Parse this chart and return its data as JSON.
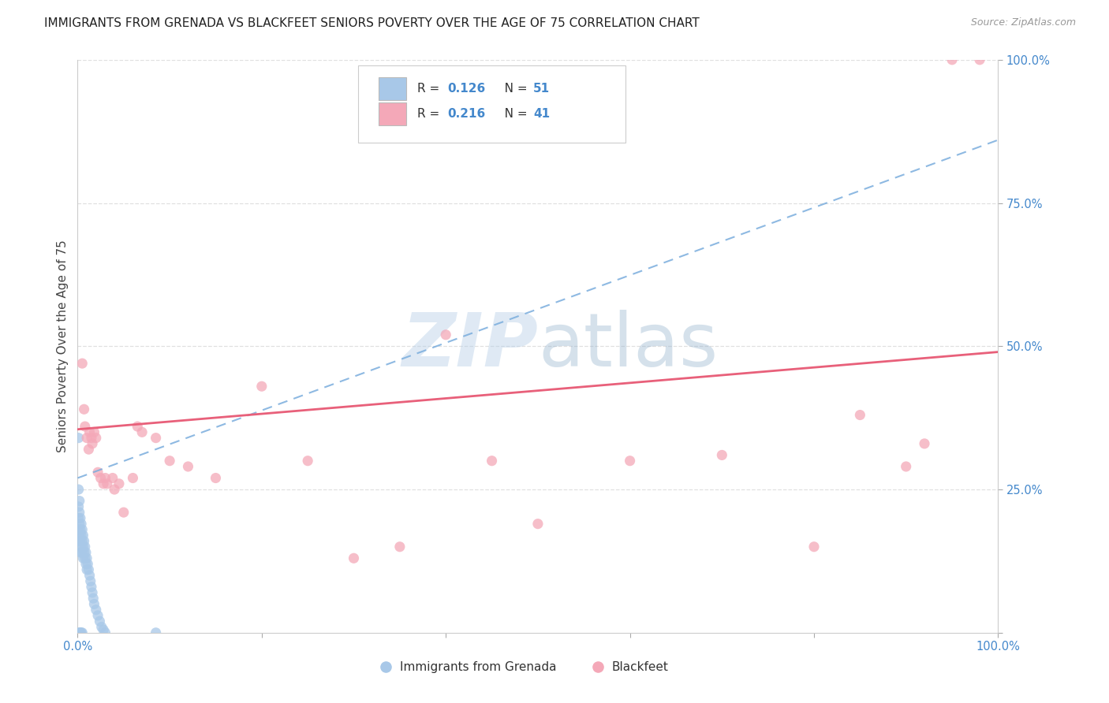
{
  "title": "IMMIGRANTS FROM GRENADA VS BLACKFEET SENIORS POVERTY OVER THE AGE OF 75 CORRELATION CHART",
  "source": "Source: ZipAtlas.com",
  "ylabel": "Seniors Poverty Over the Age of 75",
  "xlim": [
    0.0,
    1.0
  ],
  "ylim": [
    0.0,
    1.0
  ],
  "blue_color": "#a8c8e8",
  "pink_color": "#f4a8b8",
  "blue_line_color": "#7aaddd",
  "pink_line_color": "#e8607a",
  "watermark_zip": "ZIP",
  "watermark_atlas": "atlas",
  "grid_color": "#e0e0e0",
  "background_color": "#ffffff",
  "title_fontsize": 11,
  "axis_label_fontsize": 11,
  "tick_fontsize": 10.5,
  "marker_size": 90,
  "blue_line_y_start": 0.27,
  "blue_line_y_end": 0.86,
  "pink_line_y_start": 0.355,
  "pink_line_y_end": 0.49,
  "blue_scatter_x": [
    0.001,
    0.001,
    0.001,
    0.001,
    0.001,
    0.002,
    0.002,
    0.002,
    0.002,
    0.003,
    0.003,
    0.003,
    0.003,
    0.004,
    0.004,
    0.004,
    0.005,
    0.005,
    0.005,
    0.006,
    0.006,
    0.006,
    0.007,
    0.007,
    0.008,
    0.008,
    0.009,
    0.009,
    0.01,
    0.01,
    0.011,
    0.012,
    0.013,
    0.014,
    0.015,
    0.016,
    0.017,
    0.018,
    0.02,
    0.022,
    0.024,
    0.026,
    0.028,
    0.03,
    0.002,
    0.003,
    0.004,
    0.005,
    0.085,
    0.001,
    0.002
  ],
  "blue_scatter_y": [
    0.25,
    0.22,
    0.2,
    0.18,
    0.16,
    0.23,
    0.21,
    0.19,
    0.17,
    0.2,
    0.18,
    0.16,
    0.14,
    0.19,
    0.17,
    0.15,
    0.18,
    0.16,
    0.14,
    0.17,
    0.15,
    0.13,
    0.16,
    0.14,
    0.15,
    0.13,
    0.14,
    0.12,
    0.13,
    0.11,
    0.12,
    0.11,
    0.1,
    0.09,
    0.08,
    0.07,
    0.06,
    0.05,
    0.04,
    0.03,
    0.02,
    0.01,
    0.005,
    0.0,
    0.0,
    0.0,
    0.0,
    0.0,
    0.0,
    0.34,
    0.0
  ],
  "pink_scatter_x": [
    0.005,
    0.007,
    0.008,
    0.01,
    0.012,
    0.013,
    0.015,
    0.016,
    0.018,
    0.02,
    0.022,
    0.025,
    0.028,
    0.03,
    0.032,
    0.038,
    0.04,
    0.045,
    0.05,
    0.06,
    0.065,
    0.07,
    0.085,
    0.1,
    0.12,
    0.15,
    0.2,
    0.25,
    0.3,
    0.35,
    0.4,
    0.45,
    0.5,
    0.6,
    0.7,
    0.8,
    0.85,
    0.9,
    0.92,
    0.95,
    0.98
  ],
  "pink_scatter_y": [
    0.47,
    0.39,
    0.36,
    0.34,
    0.32,
    0.35,
    0.34,
    0.33,
    0.35,
    0.34,
    0.28,
    0.27,
    0.26,
    0.27,
    0.26,
    0.27,
    0.25,
    0.26,
    0.21,
    0.27,
    0.36,
    0.35,
    0.34,
    0.3,
    0.29,
    0.27,
    0.43,
    0.3,
    0.13,
    0.15,
    0.52,
    0.3,
    0.19,
    0.3,
    0.31,
    0.15,
    0.38,
    0.29,
    0.33,
    1.0,
    1.0
  ]
}
